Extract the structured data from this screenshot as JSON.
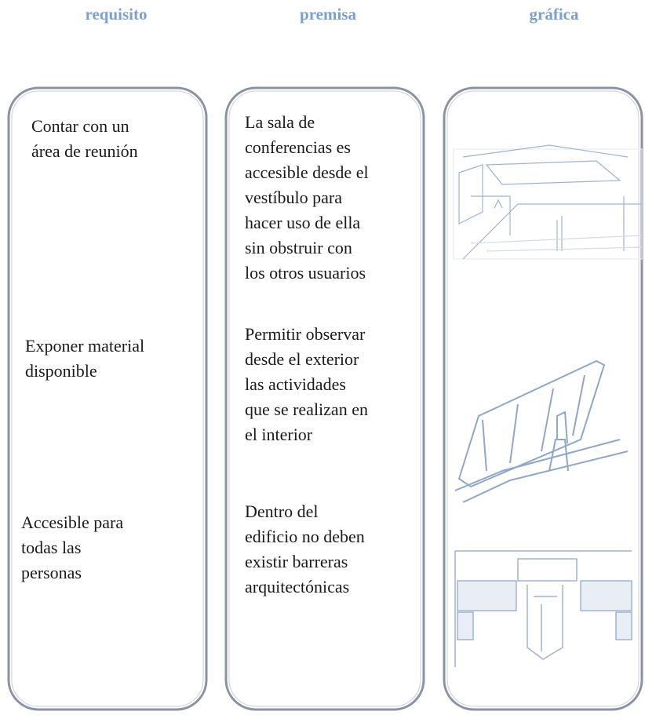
{
  "header": {
    "columns": [
      "requisito",
      "premisa",
      "gráfica"
    ]
  },
  "rows": [
    {
      "requisito": [
        "Contar con un",
        "área de reunión"
      ],
      "premisa": [
        "La sala de",
        "conferencias es",
        "accesible desde el",
        "vestíbulo para",
        "hacer uso de ella",
        "sin obstruir con",
        "los otros usuarios"
      ]
    },
    {
      "requisito": [
        "Exponer material",
        "disponible"
      ],
      "premisa": [
        "Permitir observar",
        "desde el exterior",
        "las actividades",
        "que se realizan en",
        "el interior"
      ]
    },
    {
      "requisito": [
        "Accesible para",
        "todas las",
        "personas"
      ],
      "premisa": [
        "Dentro del",
        "edificio no deben",
        "existir barreras",
        "arquitectónicas"
      ]
    }
  ]
}
